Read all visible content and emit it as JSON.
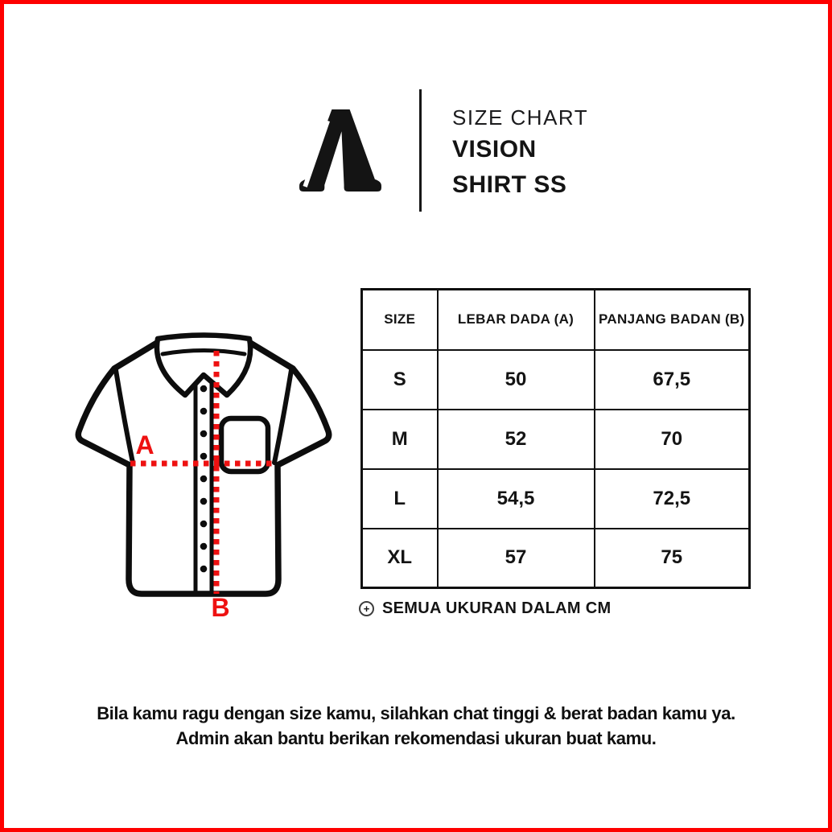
{
  "page": {
    "border_color": "#fe0000",
    "background_color": "#ffffff"
  },
  "header": {
    "logo_letter": "A",
    "title": "SIZE CHART",
    "product_line1": "VISION",
    "product_line2": "SHIRT SS"
  },
  "diagram": {
    "type": "short-sleeve button-up shirt line drawing",
    "label_a": "A",
    "label_b": "B",
    "accent_color": "#ee1111",
    "outline_color": "#0d0d0d"
  },
  "size_table": {
    "columns": [
      "SIZE",
      "LEBAR DADA (A)",
      "PANJANG BADAN (B)"
    ],
    "rows": [
      {
        "size": "S",
        "lebar_dada": "50",
        "panjang_badan": "67,5"
      },
      {
        "size": "M",
        "lebar_dada": "52",
        "panjang_badan": "70"
      },
      {
        "size": "L",
        "lebar_dada": "54,5",
        "panjang_badan": "72,5"
      },
      {
        "size": "XL",
        "lebar_dada": "57",
        "panjang_badan": "75"
      }
    ],
    "note_icon": "plus-circle-icon",
    "note_icon_glyph": "+",
    "note": "SEMUA UKURAN DALAM CM"
  },
  "footer": {
    "line1": "Bila kamu ragu dengan size kamu, silahkan chat tinggi & berat badan kamu ya.",
    "line2": "Admin akan bantu berikan rekomendasi ukuran buat kamu."
  }
}
